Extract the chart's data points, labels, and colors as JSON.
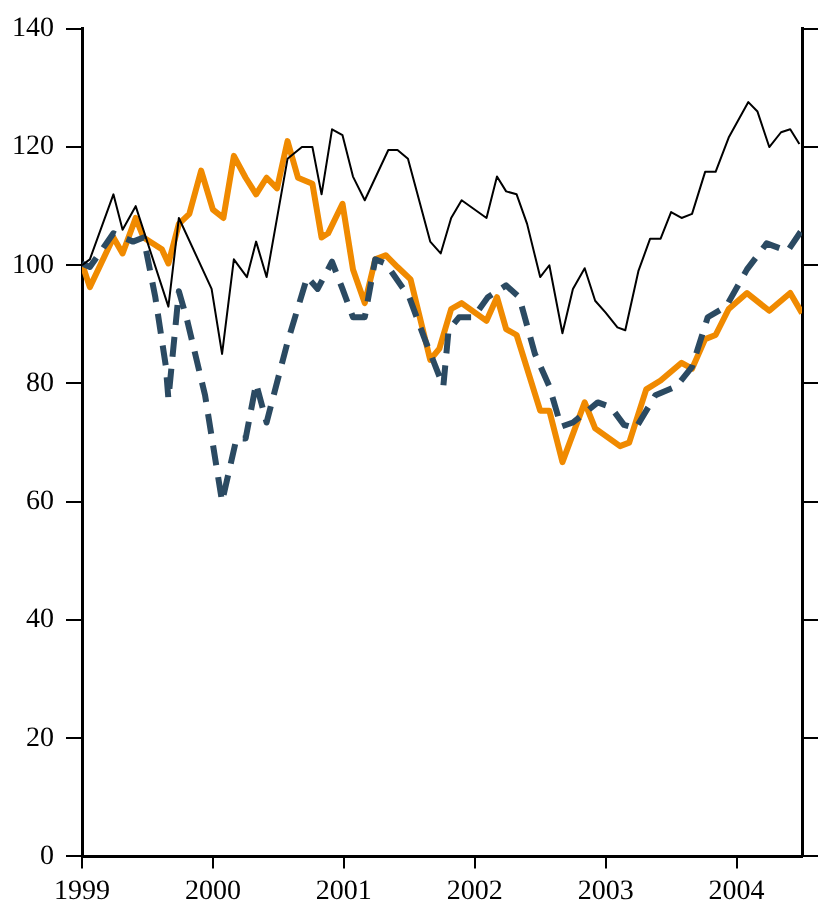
{
  "chart_data": {
    "type": "line",
    "xlim": [
      1999,
      2004.5
    ],
    "xticks": [
      1999,
      2000,
      2001,
      2002,
      2003,
      2004
    ],
    "ylim": [
      0,
      140
    ],
    "yticks": [
      0,
      20,
      40,
      60,
      80,
      100,
      120,
      140
    ],
    "grid": false,
    "legend": false,
    "marker": "none",
    "series": [
      {
        "color": "#000000",
        "line_style": "solid",
        "x": [
          1999.0,
          1999.06,
          1999.24,
          1999.31,
          1999.41,
          1999.66,
          1999.74,
          1999.99,
          2000.07,
          2000.16,
          2000.26,
          2000.33,
          2000.41,
          2000.57,
          2000.68,
          2000.76,
          2000.83,
          2000.91,
          2000.99,
          2001.07,
          2001.16,
          2001.34,
          2001.41,
          2001.49,
          2001.66,
          2001.74,
          2001.82,
          2001.9,
          2002.09,
          2002.17,
          2002.24,
          2002.32,
          2002.4,
          2002.5,
          2002.57,
          2002.67,
          2002.75,
          2002.84,
          2002.92,
          2003.0,
          2003.09,
          2003.15,
          2003.25,
          2003.34,
          2003.42,
          2003.5,
          2003.58,
          2003.66,
          2003.76,
          2003.84,
          2003.94,
          2004.09,
          2004.16,
          2004.25,
          2004.34,
          2004.41,
          2004.48
        ],
        "values": [
          100,
          101,
          112,
          106,
          110,
          93,
          108,
          96,
          85,
          101,
          98,
          104,
          98,
          118,
          120,
          120,
          112,
          123,
          122,
          115,
          111,
          119.5,
          119.5,
          118,
          104,
          102,
          108,
          111,
          108,
          115,
          112.5,
          112,
          107,
          98,
          100,
          88.5,
          96,
          99.5,
          94,
          92,
          89.5,
          89,
          99,
          104.5,
          104.5,
          109,
          108,
          108.7,
          115.8,
          115.8,
          121.6,
          127.6,
          126,
          120,
          122.5,
          123,
          120.5
        ]
      },
      {
        "color": "#2b4a62",
        "line_style": "dashed",
        "x": [
          1999.0,
          1999.06,
          1999.24,
          1999.39,
          1999.47,
          1999.56,
          1999.64,
          1999.66,
          1999.74,
          1999.8,
          1999.94,
          2000.07,
          2000.18,
          2000.25,
          2000.33,
          2000.41,
          2000.57,
          2000.72,
          2000.8,
          2000.91,
          2000.99,
          2001.07,
          2001.16,
          2001.24,
          2001.32,
          2001.5,
          2001.61,
          2001.76,
          2001.8,
          2001.88,
          2001.99,
          2002.1,
          2002.24,
          2002.34,
          2002.46,
          2002.57,
          2002.66,
          2002.75,
          2002.84,
          2002.94,
          2003.04,
          2003.14,
          2003.23,
          2003.38,
          2003.54,
          2003.66,
          2003.78,
          2003.92,
          2004.08,
          2004.23,
          2004.39,
          2004.5
        ],
        "values": [
          100.3,
          99.7,
          105.4,
          104,
          104.7,
          94.6,
          83,
          77.4,
          95.6,
          91,
          78,
          60,
          70.7,
          70.7,
          80,
          73.4,
          87,
          98,
          96,
          100.6,
          96,
          91.2,
          91.2,
          101,
          100.3,
          94.6,
          88,
          79.5,
          89,
          91.2,
          91.2,
          94.6,
          96.6,
          94.6,
          85,
          79.5,
          72.7,
          73.4,
          75,
          76.8,
          76,
          73,
          72.4,
          78,
          79.5,
          82.8,
          91.2,
          93,
          99.3,
          103.7,
          102.4,
          106
        ]
      },
      {
        "color": "#f08a00",
        "line_style": "solid",
        "x": [
          1999.0,
          1999.06,
          1999.24,
          1999.31,
          1999.41,
          1999.47,
          1999.61,
          1999.66,
          1999.74,
          1999.82,
          1999.91,
          2000.0,
          2000.08,
          2000.16,
          2000.25,
          2000.33,
          2000.41,
          2000.49,
          2000.57,
          2000.65,
          2000.76,
          2000.83,
          2000.88,
          2000.99,
          2001.07,
          2001.16,
          2001.24,
          2001.32,
          2001.41,
          2001.51,
          2001.66,
          2001.73,
          2001.82,
          2001.9,
          2002.09,
          2002.17,
          2002.24,
          2002.32,
          2002.5,
          2002.57,
          2002.67,
          2002.84,
          2002.92,
          2003.11,
          2003.18,
          2003.31,
          2003.42,
          2003.58,
          2003.66,
          2003.76,
          2003.84,
          2003.94,
          2004.08,
          2004.25,
          2004.41,
          2004.5
        ],
        "values": [
          100.3,
          96.3,
          104.7,
          102,
          108,
          104.7,
          102.7,
          100.3,
          107,
          108.7,
          116,
          109.4,
          108,
          118.5,
          114.8,
          112,
          114.8,
          113,
          121,
          114.8,
          113.8,
          104.7,
          105.4,
          110.4,
          99.3,
          93.6,
          101,
          101.7,
          99.7,
          97.6,
          84,
          85.9,
          92.6,
          93.6,
          90.6,
          94.6,
          89.2,
          88.2,
          75.4,
          75.4,
          66.7,
          76.8,
          72.4,
          69.4,
          70,
          79,
          80.5,
          83.5,
          82.5,
          87.5,
          88.2,
          92.6,
          95.3,
          92.3,
          95.3,
          91.9
        ]
      }
    ]
  }
}
